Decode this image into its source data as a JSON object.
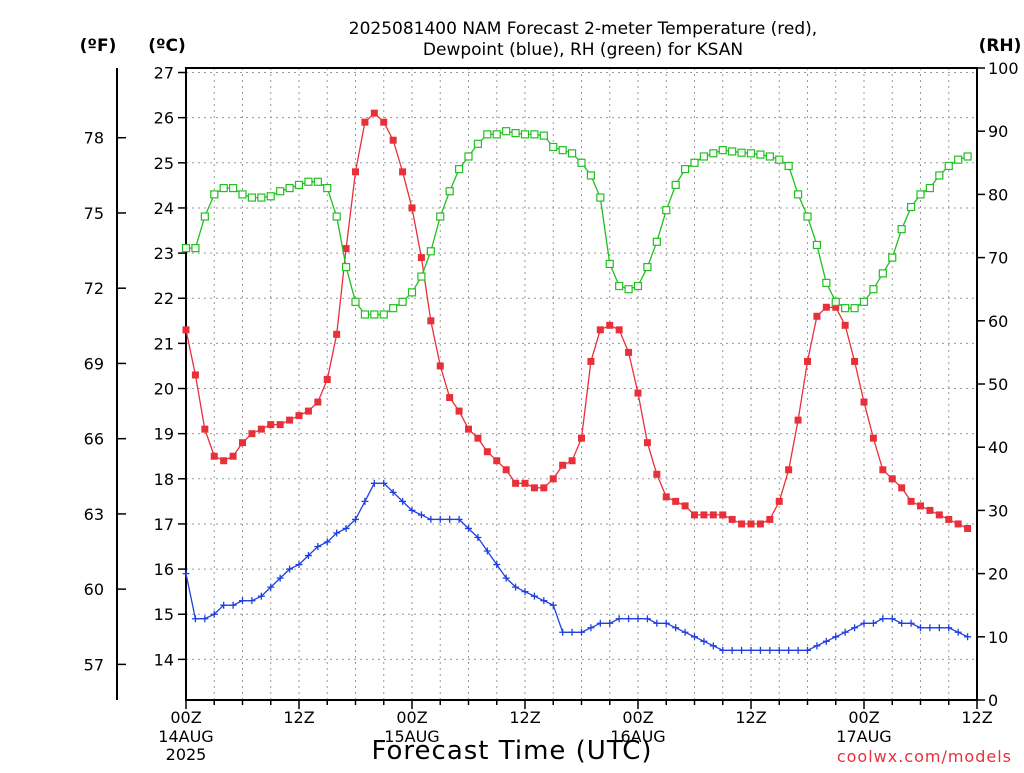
{
  "chart_data": {
    "type": "line",
    "title_line1": "2025081400 NAM Forecast 2-meter Temperature (red),",
    "title_line2": "Dewpoint (blue), RH (green) for KSAN",
    "xlabel": "Forecast Time (UTC)",
    "credit": "coolwx.com/models",
    "units": {
      "f": "(ºF)",
      "c": "(ºC)",
      "rh": "(RH)"
    },
    "x_hours_range": [
      0,
      84
    ],
    "ylim_c": [
      13.1,
      27.1
    ],
    "ylim_rh": [
      0,
      100
    ],
    "x_ticks": [
      {
        "hour": 0,
        "label": "00Z",
        "sub": [
          "14AUG",
          "2025"
        ]
      },
      {
        "hour": 12,
        "label": "12Z",
        "sub": []
      },
      {
        "hour": 24,
        "label": "00Z",
        "sub": [
          "15AUG"
        ]
      },
      {
        "hour": 36,
        "label": "12Z",
        "sub": []
      },
      {
        "hour": 48,
        "label": "00Z",
        "sub": [
          "16AUG"
        ]
      },
      {
        "hour": 60,
        "label": "12Z",
        "sub": []
      },
      {
        "hour": 72,
        "label": "00Z",
        "sub": [
          "17AUG"
        ]
      },
      {
        "hour": 84,
        "label": "12Z",
        "sub": []
      }
    ],
    "c_ticks": [
      "14",
      "15",
      "16",
      "17",
      "18",
      "19",
      "20",
      "21",
      "22",
      "23",
      "24",
      "25",
      "26",
      "27"
    ],
    "f_ticks": [
      "57",
      "60",
      "63",
      "66",
      "69",
      "72",
      "75",
      "78"
    ],
    "rh_ticks": [
      "0",
      "10",
      "20",
      "30",
      "40",
      "50",
      "60",
      "70",
      "80",
      "90",
      "100"
    ],
    "grid": true,
    "series": [
      {
        "name": "Temperature (red)",
        "unit": "C",
        "color": "#e8303a",
        "marker": "filled-square",
        "values": [
          21.3,
          20.3,
          19.1,
          18.5,
          18.4,
          18.5,
          18.8,
          19.0,
          19.1,
          19.2,
          19.2,
          19.3,
          19.4,
          19.5,
          19.7,
          20.2,
          21.2,
          23.1,
          24.8,
          25.9,
          26.1,
          25.9,
          25.5,
          24.8,
          24.0,
          22.9,
          21.5,
          20.5,
          19.8,
          19.5,
          19.1,
          18.9,
          18.6,
          18.4,
          18.2,
          17.9,
          17.9,
          17.8,
          17.8,
          18.0,
          18.3,
          18.4,
          18.9,
          20.6,
          21.3,
          21.4,
          21.3,
          20.8,
          19.9,
          18.8,
          18.1,
          17.6,
          17.5,
          17.4,
          17.2,
          17.2,
          17.2,
          17.2,
          17.1,
          17.0,
          17.0,
          17.0,
          17.1,
          17.5,
          18.2,
          19.3,
          20.6,
          21.6,
          21.8,
          21.8,
          21.4,
          20.6,
          19.7,
          18.9,
          18.2,
          18.0,
          17.8,
          17.5,
          17.4,
          17.3,
          17.2,
          17.1,
          17.0,
          16.9
        ]
      },
      {
        "name": "Dewpoint (blue)",
        "unit": "C",
        "color": "#2040e0",
        "marker": "plus",
        "values": [
          15.9,
          14.9,
          14.9,
          15.0,
          15.2,
          15.2,
          15.3,
          15.3,
          15.4,
          15.6,
          15.8,
          16.0,
          16.1,
          16.3,
          16.5,
          16.6,
          16.8,
          16.9,
          17.1,
          17.5,
          17.9,
          17.9,
          17.7,
          17.5,
          17.3,
          17.2,
          17.1,
          17.1,
          17.1,
          17.1,
          16.9,
          16.7,
          16.4,
          16.1,
          15.8,
          15.6,
          15.5,
          15.4,
          15.3,
          15.2,
          14.6,
          14.6,
          14.6,
          14.7,
          14.8,
          14.8,
          14.9,
          14.9,
          14.9,
          14.9,
          14.8,
          14.8,
          14.7,
          14.6,
          14.5,
          14.4,
          14.3,
          14.2,
          14.2,
          14.2,
          14.2,
          14.2,
          14.2,
          14.2,
          14.2,
          14.2,
          14.2,
          14.3,
          14.4,
          14.5,
          14.6,
          14.7,
          14.8,
          14.8,
          14.9,
          14.9,
          14.8,
          14.8,
          14.7,
          14.7,
          14.7,
          14.7,
          14.6,
          14.5
        ]
      },
      {
        "name": "RH (green)",
        "unit": "%",
        "color": "#20c020",
        "marker": "open-square",
        "values": [
          71.5,
          71.5,
          76.5,
          80.0,
          81.0,
          81.0,
          80.0,
          79.5,
          79.5,
          79.7,
          80.5,
          81.0,
          81.5,
          82.0,
          82.0,
          81.0,
          76.5,
          68.5,
          63.0,
          61.0,
          61.0,
          61.0,
          62.0,
          63.0,
          64.5,
          67.0,
          71.0,
          76.5,
          80.5,
          84.0,
          86.0,
          88.0,
          89.5,
          89.5,
          90.0,
          89.7,
          89.5,
          89.5,
          89.3,
          87.5,
          87.0,
          86.5,
          85.0,
          83.0,
          79.5,
          69.0,
          65.5,
          65.0,
          65.5,
          68.5,
          72.5,
          77.5,
          81.5,
          84.0,
          85.0,
          86.0,
          86.5,
          87.0,
          86.8,
          86.6,
          86.5,
          86.3,
          86.0,
          85.5,
          84.5,
          80.0,
          76.5,
          72.0,
          66.0,
          63.0,
          62.0,
          62.0,
          63.0,
          65.0,
          67.5,
          70.0,
          74.5,
          78.0,
          80.0,
          81.0,
          83.0,
          84.5,
          85.5,
          86.0
        ]
      }
    ]
  }
}
